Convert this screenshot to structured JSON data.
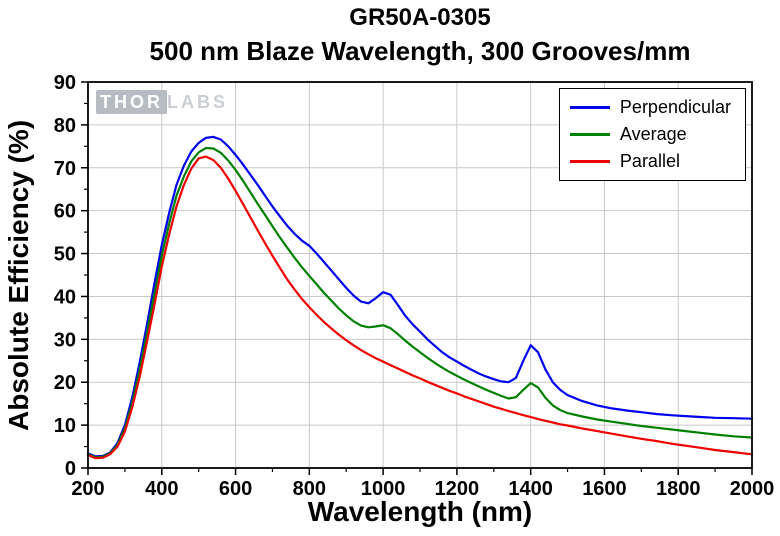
{
  "figure": {
    "watermark": {
      "part1": "THOR",
      "part2": "LABS"
    }
  },
  "chart_data": {
    "type": "line",
    "title": "GR50A-0305",
    "subtitle": "500 nm Blaze Wavelength, 300 Grooves/mm",
    "xlabel": "Wavelength (nm)",
    "ylabel": "Absolute Efficiency (%)",
    "xlim": [
      200,
      2000
    ],
    "ylim": [
      0,
      90
    ],
    "x_tick_step": 200,
    "y_tick_step": 10,
    "x_minor_step": 100,
    "y_minor_step": 5,
    "grid": true,
    "grid_color": "#c9c9c9",
    "axis_color": "#000000",
    "legend_position": "top-right",
    "series": [
      {
        "name": "Perpendicular",
        "color": "#0000ee",
        "points": [
          [
            200,
            3.4
          ],
          [
            220,
            2.7
          ],
          [
            240,
            2.8
          ],
          [
            260,
            3.6
          ],
          [
            280,
            5.8
          ],
          [
            300,
            10
          ],
          [
            320,
            16.5
          ],
          [
            340,
            24.5
          ],
          [
            360,
            33.5
          ],
          [
            380,
            43
          ],
          [
            400,
            52
          ],
          [
            420,
            59.5
          ],
          [
            440,
            66
          ],
          [
            460,
            70.5
          ],
          [
            480,
            73.8
          ],
          [
            500,
            75.8
          ],
          [
            520,
            77
          ],
          [
            540,
            77.2
          ],
          [
            560,
            76.6
          ],
          [
            580,
            75
          ],
          [
            600,
            73
          ],
          [
            620,
            70.8
          ],
          [
            640,
            68.4
          ],
          [
            660,
            66
          ],
          [
            680,
            63.5
          ],
          [
            700,
            61
          ],
          [
            720,
            58.7
          ],
          [
            740,
            56.5
          ],
          [
            760,
            54.6
          ],
          [
            780,
            53
          ],
          [
            800,
            51.8
          ],
          [
            820,
            50
          ],
          [
            840,
            48
          ],
          [
            860,
            46
          ],
          [
            880,
            44
          ],
          [
            900,
            42
          ],
          [
            920,
            40.2
          ],
          [
            940,
            38.8
          ],
          [
            960,
            38.4
          ],
          [
            980,
            39.6
          ],
          [
            1000,
            41
          ],
          [
            1020,
            40.4
          ],
          [
            1040,
            38
          ],
          [
            1060,
            35.5
          ],
          [
            1080,
            33.5
          ],
          [
            1100,
            31.8
          ],
          [
            1120,
            30
          ],
          [
            1140,
            28.5
          ],
          [
            1160,
            27
          ],
          [
            1180,
            25.8
          ],
          [
            1200,
            24.8
          ],
          [
            1220,
            23.8
          ],
          [
            1240,
            22.9
          ],
          [
            1260,
            22
          ],
          [
            1280,
            21.3
          ],
          [
            1300,
            20.7
          ],
          [
            1320,
            20.2
          ],
          [
            1340,
            20
          ],
          [
            1360,
            21
          ],
          [
            1380,
            25
          ],
          [
            1400,
            28.6
          ],
          [
            1420,
            27
          ],
          [
            1440,
            23
          ],
          [
            1460,
            20
          ],
          [
            1480,
            18.2
          ],
          [
            1500,
            17
          ],
          [
            1540,
            15.6
          ],
          [
            1580,
            14.6
          ],
          [
            1620,
            13.9
          ],
          [
            1660,
            13.4
          ],
          [
            1700,
            13
          ],
          [
            1740,
            12.6
          ],
          [
            1780,
            12.3
          ],
          [
            1820,
            12.1
          ],
          [
            1860,
            11.9
          ],
          [
            1900,
            11.7
          ],
          [
            1950,
            11.6
          ],
          [
            2000,
            11.5
          ]
        ]
      },
      {
        "name": "Average",
        "color": "#008000",
        "points": [
          [
            200,
            3.2
          ],
          [
            220,
            2.5
          ],
          [
            240,
            2.6
          ],
          [
            260,
            3.4
          ],
          [
            280,
            5.4
          ],
          [
            300,
            9.2
          ],
          [
            320,
            15.3
          ],
          [
            340,
            22.8
          ],
          [
            360,
            31.5
          ],
          [
            380,
            40.5
          ],
          [
            400,
            49.5
          ],
          [
            420,
            57
          ],
          [
            440,
            63.5
          ],
          [
            460,
            68
          ],
          [
            480,
            71.5
          ],
          [
            500,
            73.6
          ],
          [
            520,
            74.6
          ],
          [
            540,
            74.5
          ],
          [
            560,
            73.5
          ],
          [
            580,
            71.7
          ],
          [
            600,
            69.5
          ],
          [
            620,
            67
          ],
          [
            640,
            64.3
          ],
          [
            660,
            61.6
          ],
          [
            680,
            59
          ],
          [
            700,
            56.4
          ],
          [
            720,
            53.8
          ],
          [
            740,
            51.4
          ],
          [
            760,
            49
          ],
          [
            780,
            46.8
          ],
          [
            800,
            44.8
          ],
          [
            820,
            42.8
          ],
          [
            840,
            40.8
          ],
          [
            860,
            39
          ],
          [
            880,
            37.2
          ],
          [
            900,
            35.6
          ],
          [
            920,
            34.2
          ],
          [
            940,
            33.2
          ],
          [
            960,
            32.8
          ],
          [
            980,
            33
          ],
          [
            1000,
            33.3
          ],
          [
            1020,
            32.6
          ],
          [
            1040,
            31.2
          ],
          [
            1060,
            29.7
          ],
          [
            1080,
            28.3
          ],
          [
            1100,
            27
          ],
          [
            1120,
            25.7
          ],
          [
            1140,
            24.5
          ],
          [
            1160,
            23.4
          ],
          [
            1180,
            22.4
          ],
          [
            1200,
            21.5
          ],
          [
            1220,
            20.6
          ],
          [
            1240,
            19.8
          ],
          [
            1260,
            19
          ],
          [
            1280,
            18.2
          ],
          [
            1300,
            17.5
          ],
          [
            1320,
            16.8
          ],
          [
            1340,
            16.2
          ],
          [
            1360,
            16.5
          ],
          [
            1380,
            18.2
          ],
          [
            1400,
            19.8
          ],
          [
            1420,
            18.8
          ],
          [
            1440,
            16.4
          ],
          [
            1460,
            14.6
          ],
          [
            1480,
            13.5
          ],
          [
            1500,
            12.8
          ],
          [
            1540,
            12
          ],
          [
            1580,
            11.3
          ],
          [
            1620,
            10.8
          ],
          [
            1660,
            10.3
          ],
          [
            1700,
            9.8
          ],
          [
            1740,
            9.4
          ],
          [
            1780,
            9
          ],
          [
            1820,
            8.6
          ],
          [
            1860,
            8.2
          ],
          [
            1900,
            7.8
          ],
          [
            1950,
            7.4
          ],
          [
            2000,
            7.1
          ]
        ]
      },
      {
        "name": "Parallel",
        "color": "#ee0000",
        "points": [
          [
            200,
            3
          ],
          [
            220,
            2.3
          ],
          [
            240,
            2.4
          ],
          [
            260,
            3.2
          ],
          [
            280,
            5
          ],
          [
            300,
            8.5
          ],
          [
            320,
            14.2
          ],
          [
            340,
            21.2
          ],
          [
            360,
            29.5
          ],
          [
            380,
            38
          ],
          [
            400,
            47
          ],
          [
            420,
            54.5
          ],
          [
            440,
            61
          ],
          [
            460,
            66
          ],
          [
            480,
            69.8
          ],
          [
            500,
            72.2
          ],
          [
            520,
            72.6
          ],
          [
            540,
            71.8
          ],
          [
            560,
            70
          ],
          [
            580,
            67.5
          ],
          [
            600,
            64.6
          ],
          [
            620,
            61.6
          ],
          [
            640,
            58.5
          ],
          [
            660,
            55.4
          ],
          [
            680,
            52.4
          ],
          [
            700,
            49.5
          ],
          [
            720,
            46.7
          ],
          [
            740,
            44
          ],
          [
            760,
            41.6
          ],
          [
            780,
            39.4
          ],
          [
            800,
            37.5
          ],
          [
            820,
            35.7
          ],
          [
            840,
            34
          ],
          [
            860,
            32.5
          ],
          [
            880,
            31.1
          ],
          [
            900,
            29.8
          ],
          [
            920,
            28.6
          ],
          [
            940,
            27.5
          ],
          [
            960,
            26.5
          ],
          [
            980,
            25.6
          ],
          [
            1000,
            24.8
          ],
          [
            1020,
            24
          ],
          [
            1040,
            23.2
          ],
          [
            1060,
            22.4
          ],
          [
            1080,
            21.6
          ],
          [
            1100,
            20.9
          ],
          [
            1120,
            20.1
          ],
          [
            1140,
            19.4
          ],
          [
            1160,
            18.7
          ],
          [
            1180,
            18
          ],
          [
            1200,
            17.4
          ],
          [
            1220,
            16.7
          ],
          [
            1240,
            16.1
          ],
          [
            1260,
            15.5
          ],
          [
            1280,
            14.9
          ],
          [
            1300,
            14.3
          ],
          [
            1320,
            13.8
          ],
          [
            1340,
            13.3
          ],
          [
            1360,
            12.8
          ],
          [
            1380,
            12.3
          ],
          [
            1400,
            11.9
          ],
          [
            1420,
            11.4
          ],
          [
            1440,
            11
          ],
          [
            1460,
            10.6
          ],
          [
            1480,
            10.2
          ],
          [
            1500,
            9.9
          ],
          [
            1540,
            9.2
          ],
          [
            1580,
            8.6
          ],
          [
            1620,
            8
          ],
          [
            1660,
            7.4
          ],
          [
            1700,
            6.8
          ],
          [
            1740,
            6.3
          ],
          [
            1780,
            5.7
          ],
          [
            1820,
            5.2
          ],
          [
            1860,
            4.7
          ],
          [
            1900,
            4.2
          ],
          [
            1950,
            3.7
          ],
          [
            2000,
            3.2
          ]
        ]
      }
    ]
  }
}
